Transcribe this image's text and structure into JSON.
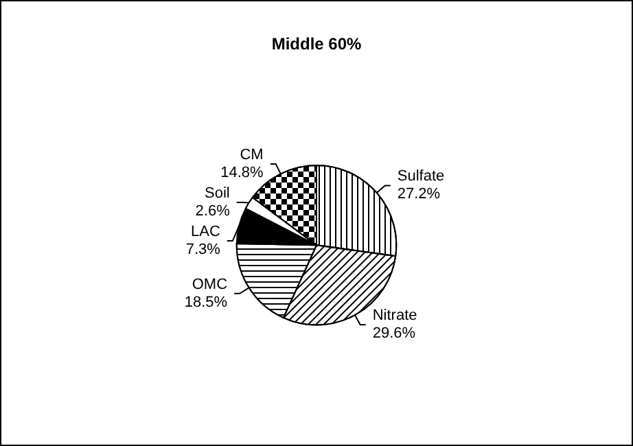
{
  "chart_data": {
    "type": "pie",
    "title": "Middle 60%",
    "categories": [
      "Sulfate",
      "Nitrate",
      "OMC",
      "LAC",
      "Soil",
      "CM"
    ],
    "values": [
      27.2,
      29.6,
      18.5,
      7.3,
      2.6,
      14.8
    ],
    "colors": [
      "#ffffff",
      "#ffffff",
      "#ffffff",
      "#000000",
      "#ffffff",
      "#ffffff"
    ],
    "value_labels": [
      "27.2%",
      "29.6%",
      "18.5%",
      "7.3%",
      "2.6%",
      "14.8%"
    ],
    "legend": false
  }
}
